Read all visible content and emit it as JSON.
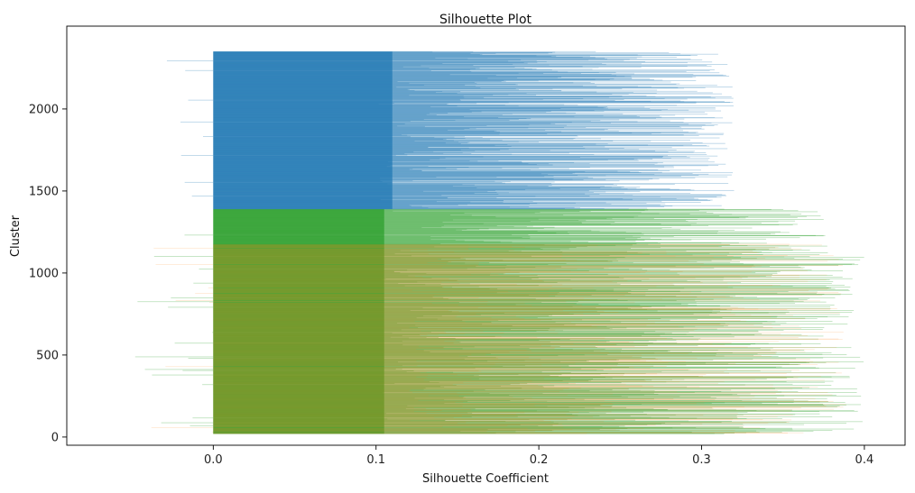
{
  "chart_data": {
    "type": "bar",
    "orientation": "horizontal",
    "title": "Silhouette Plot",
    "xlabel": "Silhouette Coefficient",
    "ylabel": "Cluster",
    "xlim": [
      -0.09,
      0.425
    ],
    "ylim": [
      -50,
      2505
    ],
    "xticks": [
      0.0,
      0.1,
      0.2,
      0.3,
      0.4
    ],
    "xtick_labels": [
      "0.0",
      "0.1",
      "0.2",
      "0.3",
      "0.4"
    ],
    "yticks": [
      0,
      500,
      1000,
      1500,
      2000
    ],
    "ytick_labels": [
      "0",
      "500",
      "1000",
      "1500",
      "2000"
    ],
    "grid": false,
    "series": [
      {
        "cluster": 0,
        "color": "#2ca02c",
        "y_range": [
          20,
          1175
        ],
        "max_coefficient": 0.4,
        "min_coefficient": -0.05
      },
      {
        "cluster": 1,
        "color": "#ff7f0e",
        "y_range": [
          20,
          1175
        ],
        "max_coefficient": 0.39,
        "min_coefficient": -0.05
      },
      {
        "cluster": 2,
        "color": "#2ca02c",
        "y_range": [
          1175,
          1390
        ],
        "max_coefficient": 0.38,
        "min_coefficient": -0.02
      },
      {
        "cluster": 3,
        "color": "#1f77b4",
        "y_range": [
          1390,
          2350
        ],
        "max_coefficient": 0.32,
        "min_coefficient": -0.03
      }
    ]
  }
}
